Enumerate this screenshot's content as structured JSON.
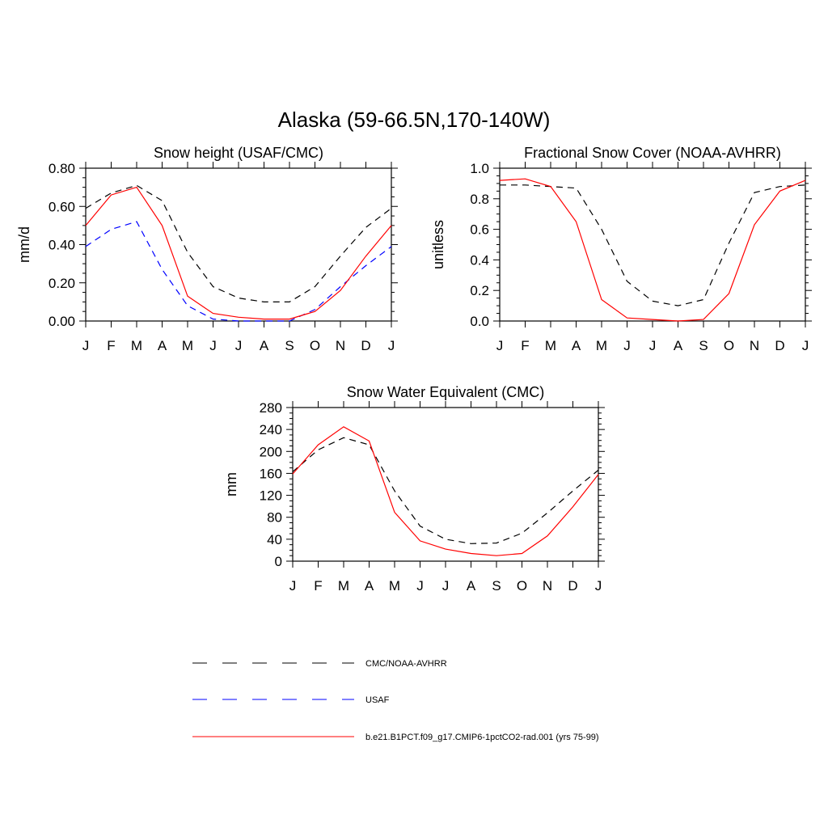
{
  "figure_title": "Alaska (59-66.5N,170-140W)",
  "chart_data": [
    {
      "type": "line",
      "title": "Snow height (USAF/CMC)",
      "xlabel": "",
      "ylabel": "mm/d",
      "categories": [
        "J",
        "F",
        "M",
        "A",
        "M",
        "J",
        "J",
        "A",
        "S",
        "O",
        "N",
        "D",
        "J"
      ],
      "ylim": [
        0,
        0.8
      ],
      "yticks": [
        0,
        0.2,
        0.4,
        0.6,
        0.8
      ],
      "ytick_labels": [
        "0.00",
        "0.20",
        "0.40",
        "0.60",
        "0.80"
      ],
      "series": [
        {
          "name": "CMC/NOAA-AVHRR",
          "color": "#000000",
          "dash": true,
          "values": [
            0.59,
            0.67,
            0.71,
            0.63,
            0.36,
            0.18,
            0.12,
            0.1,
            0.1,
            0.18,
            0.34,
            0.49,
            0.59
          ]
        },
        {
          "name": "USAF",
          "color": "#0000ff",
          "dash": true,
          "values": [
            0.39,
            0.48,
            0.52,
            0.27,
            0.08,
            0.01,
            0.0,
            0.0,
            0.0,
            0.06,
            0.18,
            0.29,
            0.39
          ]
        },
        {
          "name": "b.e21.B1PCT.f09_g17.CMIP6-1pctCO2-rad.001 (yrs 75-99)",
          "color": "#ff0000",
          "dash": false,
          "values": [
            0.5,
            0.66,
            0.7,
            0.5,
            0.13,
            0.04,
            0.02,
            0.01,
            0.01,
            0.05,
            0.16,
            0.34,
            0.5
          ]
        }
      ]
    },
    {
      "type": "line",
      "title": "Fractional Snow Cover (NOAA-AVHRR)",
      "xlabel": "",
      "ylabel": "unitless",
      "categories": [
        "J",
        "F",
        "M",
        "A",
        "M",
        "J",
        "J",
        "A",
        "S",
        "O",
        "N",
        "D",
        "J"
      ],
      "ylim": [
        0,
        1.0
      ],
      "yticks": [
        0,
        0.2,
        0.4,
        0.6,
        0.8,
        1.0
      ],
      "ytick_labels": [
        "0.0",
        "0.2",
        "0.4",
        "0.6",
        "0.8",
        "1.0"
      ],
      "series": [
        {
          "name": "CMC/NOAA-AVHRR",
          "color": "#000000",
          "dash": true,
          "values": [
            0.89,
            0.89,
            0.88,
            0.87,
            0.6,
            0.26,
            0.13,
            0.1,
            0.14,
            0.51,
            0.84,
            0.88,
            0.89
          ]
        },
        {
          "name": "b.e21.B1PCT.f09_g17.CMIP6-1pctCO2-rad.001 (yrs 75-99)",
          "color": "#ff0000",
          "dash": false,
          "values": [
            0.92,
            0.93,
            0.88,
            0.65,
            0.14,
            0.02,
            0.01,
            0.0,
            0.01,
            0.18,
            0.63,
            0.85,
            0.92
          ]
        }
      ]
    },
    {
      "type": "line",
      "title": "Snow Water Equivalent (CMC)",
      "xlabel": "",
      "ylabel": "mm",
      "categories": [
        "J",
        "F",
        "M",
        "A",
        "M",
        "J",
        "J",
        "A",
        "S",
        "O",
        "N",
        "D",
        "J"
      ],
      "ylim": [
        0,
        280
      ],
      "yticks": [
        0,
        40,
        80,
        120,
        160,
        200,
        240,
        280
      ],
      "ytick_labels": [
        "0",
        "40",
        "80",
        "120",
        "160",
        "200",
        "240",
        "280"
      ],
      "series": [
        {
          "name": "CMC/NOAA-AVHRR",
          "color": "#000000",
          "dash": true,
          "values": [
            163,
            203,
            225,
            212,
            128,
            64,
            40,
            32,
            33,
            51,
            88,
            128,
            166
          ]
        },
        {
          "name": "b.e21.B1PCT.f09_g17.CMIP6-1pctCO2-rad.001 (yrs 75-99)",
          "color": "#ff0000",
          "dash": false,
          "values": [
            159,
            212,
            245,
            219,
            89,
            37,
            22,
            14,
            10,
            14,
            46,
            99,
            158
          ]
        }
      ]
    }
  ],
  "legend": {
    "placement": "bottom",
    "entries": [
      {
        "label": "CMC/NOAA-AVHRR",
        "color": "#000000",
        "dash": true
      },
      {
        "label": "USAF",
        "color": "#0000ff",
        "dash": true
      },
      {
        "label": "b.e21.B1PCT.f09_g17.CMIP6-1pctCO2-rad.001 (yrs 75-99)",
        "color": "#ff0000",
        "dash": false
      }
    ]
  }
}
